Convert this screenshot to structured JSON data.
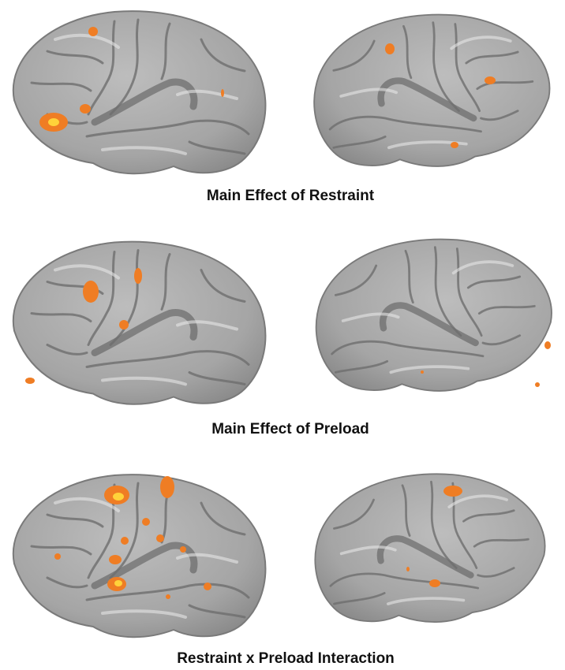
{
  "panels": [
    {
      "caption": "Main Effect of Restraint"
    },
    {
      "caption": "Main Effect of Preload"
    },
    {
      "caption": "Restraint x Preload Interaction"
    }
  ]
}
